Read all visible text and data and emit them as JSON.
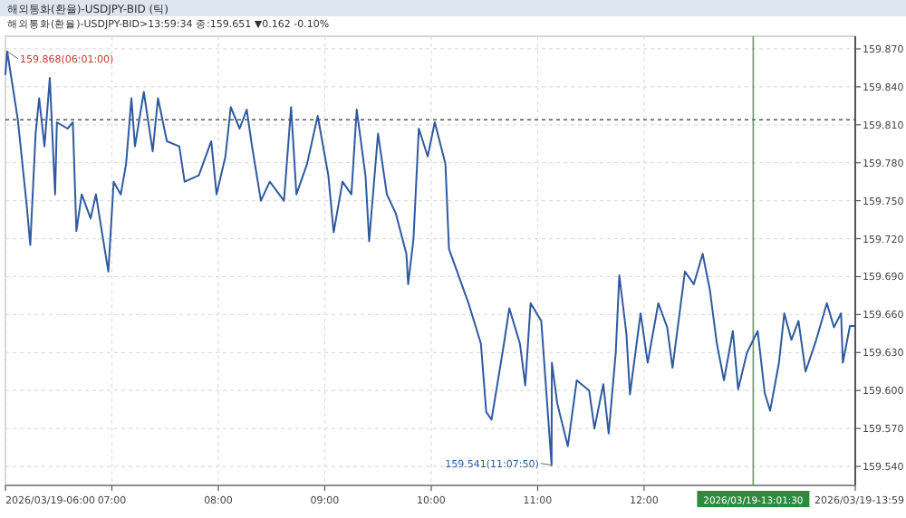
{
  "chart_data": {
    "type": "line",
    "title": "해외통화(환율)-USDJPY-BID (틱)",
    "subtitle": "해외통화(환율)-USDJPY-BID>13:59:34 종:159.651 ▼0.162 -0.10%",
    "xlim": [
      "2026-03-19T06:00",
      "2026-03-19T13:59"
    ],
    "ylim": [
      159.525,
      159.88
    ],
    "xticks": [
      {
        "value": "2026-03-19T06:00",
        "label": "2026/03/19-06:00"
      },
      {
        "value": "2026-03-19T07:00",
        "label": "07:00"
      },
      {
        "value": "2026-03-19T08:00",
        "label": "08:00"
      },
      {
        "value": "2026-03-19T09:00",
        "label": "09:00"
      },
      {
        "value": "2026-03-19T10:00",
        "label": "10:00"
      },
      {
        "value": "2026-03-19T11:00",
        "label": "11:00"
      },
      {
        "value": "2026-03-19T12:00",
        "label": "12:00"
      },
      {
        "value": "2026-03-19T13:59",
        "label": "2026/03/19-13:59"
      }
    ],
    "yticks": [
      {
        "value": 159.54,
        "label": "159.540"
      },
      {
        "value": 159.57,
        "label": "159.570"
      },
      {
        "value": 159.6,
        "label": "159.600"
      },
      {
        "value": 159.63,
        "label": "159.630"
      },
      {
        "value": 159.66,
        "label": "159.660"
      },
      {
        "value": 159.69,
        "label": "159.690"
      },
      {
        "value": 159.72,
        "label": "159.720"
      },
      {
        "value": 159.75,
        "label": "159.750"
      },
      {
        "value": 159.78,
        "label": "159.780"
      },
      {
        "value": 159.81,
        "label": "159.810"
      },
      {
        "value": 159.84,
        "label": "159.840"
      },
      {
        "value": 159.87,
        "label": "159.870"
      }
    ],
    "grid": true,
    "marker": "none",
    "line_style": "solid",
    "ref_lines": [
      {
        "axis": "y",
        "value": 159.814,
        "color": "#555555",
        "line_style": "dotted"
      },
      {
        "axis": "x",
        "value": "2026-03-19T13:01:30",
        "label": "2026/03/19-13:01:30",
        "color": "#5aa05a",
        "line_style": "solid"
      }
    ],
    "annotations": [
      {
        "text": "159.868(06:01:00)",
        "x": "2026-03-19T06:01",
        "y": 159.868
      },
      {
        "text": "159.541(11:07:50)",
        "x": "2026-03-19T11:07:50",
        "y": 159.541
      }
    ],
    "series": [
      {
        "color": "#2f5aa0",
        "x": [
          "2026-03-19T06:00",
          "2026-03-19T06:01",
          "2026-03-19T06:07",
          "2026-03-19T06:12",
          "2026-03-19T06:14",
          "2026-03-19T06:17",
          "2026-03-19T06:19",
          "2026-03-19T06:22",
          "2026-03-19T06:25",
          "2026-03-19T06:28",
          "2026-03-19T06:29",
          "2026-03-19T06:35",
          "2026-03-19T06:38",
          "2026-03-19T06:40",
          "2026-03-19T06:43",
          "2026-03-19T06:48",
          "2026-03-19T06:51",
          "2026-03-19T06:55",
          "2026-03-19T06:58",
          "2026-03-19T07:01",
          "2026-03-19T07:05",
          "2026-03-19T07:08",
          "2026-03-19T07:11",
          "2026-03-19T07:13",
          "2026-03-19T07:18",
          "2026-03-19T07:23",
          "2026-03-19T07:26",
          "2026-03-19T07:31",
          "2026-03-19T07:38",
          "2026-03-19T07:41",
          "2026-03-19T07:49",
          "2026-03-19T07:56",
          "2026-03-19T07:59",
          "2026-03-19T08:04",
          "2026-03-19T08:07",
          "2026-03-19T08:12",
          "2026-03-19T08:16",
          "2026-03-19T08:19",
          "2026-03-19T08:24",
          "2026-03-19T08:29",
          "2026-03-19T08:37",
          "2026-03-19T08:41",
          "2026-03-19T08:44",
          "2026-03-19T08:50",
          "2026-03-19T08:56",
          "2026-03-19T09:02",
          "2026-03-19T09:05",
          "2026-03-19T09:10",
          "2026-03-19T09:15",
          "2026-03-19T09:18",
          "2026-03-19T09:23",
          "2026-03-19T09:25",
          "2026-03-19T09:30",
          "2026-03-19T09:35",
          "2026-03-19T09:40",
          "2026-03-19T09:46",
          "2026-03-19T09:47",
          "2026-03-19T09:50",
          "2026-03-19T09:53",
          "2026-03-19T09:58",
          "2026-03-19T10:02",
          "2026-03-19T10:08",
          "2026-03-19T10:10",
          "2026-03-19T10:11",
          "2026-03-19T10:21",
          "2026-03-19T10:28",
          "2026-03-19T10:31",
          "2026-03-19T10:34",
          "2026-03-19T10:41",
          "2026-03-19T10:44",
          "2026-03-19T10:50",
          "2026-03-19T10:53",
          "2026-03-19T10:56",
          "2026-03-19T11:02",
          "2026-03-19T11:07:50",
          "2026-03-19T11:08",
          "2026-03-19T11:11",
          "2026-03-19T11:17",
          "2026-03-19T11:22",
          "2026-03-19T11:29",
          "2026-03-19T11:32",
          "2026-03-19T11:37",
          "2026-03-19T11:40",
          "2026-03-19T11:44",
          "2026-03-19T11:46",
          "2026-03-19T11:50",
          "2026-03-19T11:52",
          "2026-03-19T11:58",
          "2026-03-19T12:02",
          "2026-03-19T12:08",
          "2026-03-19T12:13",
          "2026-03-19T12:16",
          "2026-03-19T12:23",
          "2026-03-19T12:28",
          "2026-03-19T12:33",
          "2026-03-19T12:37",
          "2026-03-19T12:41",
          "2026-03-19T12:45",
          "2026-03-19T12:50",
          "2026-03-19T12:53",
          "2026-03-19T12:58",
          "2026-03-19T13:04",
          "2026-03-19T13:08",
          "2026-03-19T13:11",
          "2026-03-19T13:16",
          "2026-03-19T13:19",
          "2026-03-19T13:23",
          "2026-03-19T13:27",
          "2026-03-19T13:31",
          "2026-03-19T13:37",
          "2026-03-19T13:43",
          "2026-03-19T13:47",
          "2026-03-19T13:51",
          "2026-03-19T13:52",
          "2026-03-19T13:56",
          "2026-03-19T13:59"
        ],
        "values": [
          159.85,
          159.868,
          159.814,
          159.746,
          159.715,
          159.803,
          159.831,
          159.793,
          159.847,
          159.755,
          159.812,
          159.807,
          159.812,
          159.726,
          159.755,
          159.736,
          159.755,
          159.72,
          159.694,
          159.765,
          159.755,
          159.779,
          159.831,
          159.793,
          159.836,
          159.789,
          159.831,
          159.797,
          159.793,
          159.765,
          159.77,
          159.797,
          159.755,
          159.785,
          159.824,
          159.807,
          159.822,
          159.793,
          159.75,
          159.765,
          159.75,
          159.824,
          159.755,
          159.779,
          159.817,
          159.77,
          159.725,
          159.765,
          159.755,
          159.822,
          159.769,
          159.718,
          159.803,
          159.755,
          159.74,
          159.708,
          159.684,
          159.72,
          159.807,
          159.785,
          159.812,
          159.779,
          159.712,
          159.708,
          159.669,
          159.637,
          159.583,
          159.577,
          159.637,
          159.665,
          159.637,
          159.604,
          159.669,
          159.655,
          159.541,
          159.622,
          159.59,
          159.556,
          159.608,
          159.6,
          159.57,
          159.605,
          159.566,
          159.63,
          159.691,
          159.645,
          159.597,
          159.661,
          159.622,
          159.669,
          159.65,
          159.618,
          159.694,
          159.684,
          159.708,
          159.68,
          159.637,
          159.608,
          159.647,
          159.601,
          159.63,
          159.647,
          159.598,
          159.584,
          159.622,
          159.661,
          159.64,
          159.655,
          159.615,
          159.64,
          159.669,
          159.65,
          159.661,
          159.622,
          159.651,
          159.651
        ]
      }
    ]
  }
}
